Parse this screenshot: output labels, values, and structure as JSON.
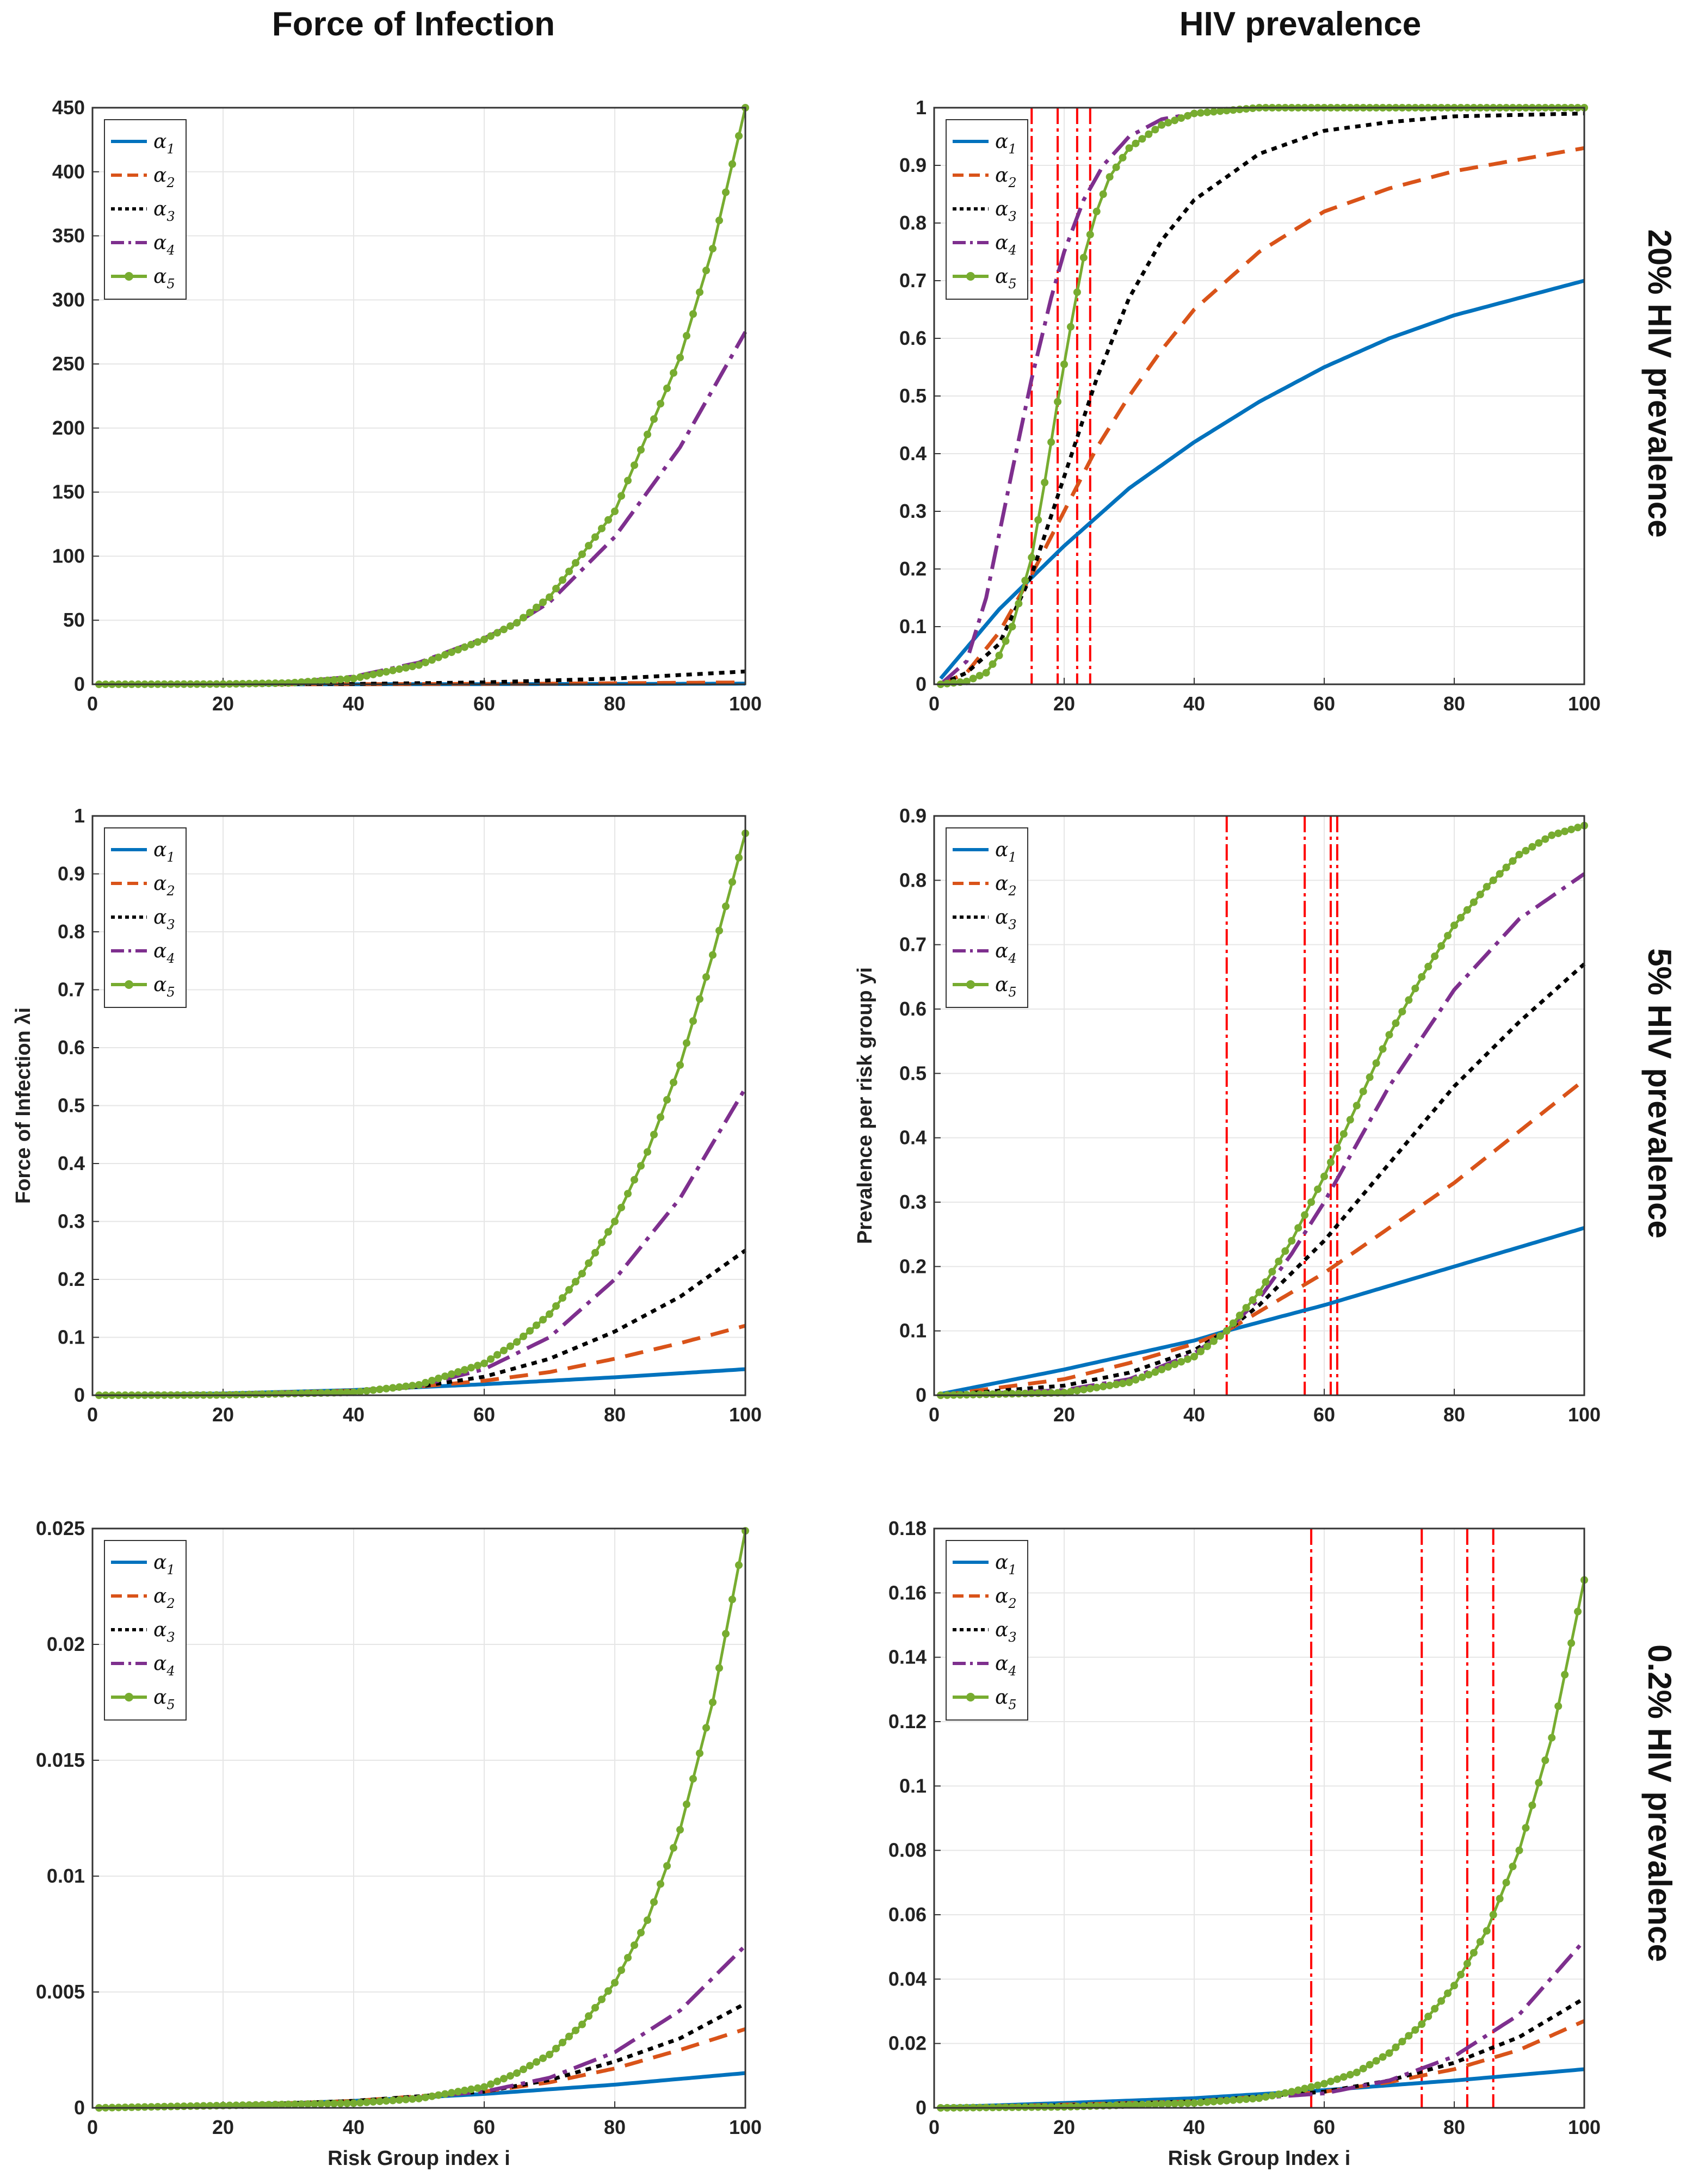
{
  "figure": {
    "column_titles": [
      "Force of Infection",
      "HIV prevalence"
    ],
    "row_titles": [
      "20% HIV prevalence",
      "5% HIV prevalence",
      "0.2% HIV prevalence"
    ],
    "series_names": [
      "α1",
      "α2",
      "α3",
      "α4",
      "α5"
    ],
    "legend": [
      {
        "symbol": "α",
        "sub": "1"
      },
      {
        "symbol": "α",
        "sub": "2"
      },
      {
        "symbol": "α",
        "sub": "3"
      },
      {
        "symbol": "α",
        "sub": "4"
      },
      {
        "symbol": "α",
        "sub": "5"
      }
    ],
    "series_colors": [
      "#0072BD",
      "#D95319",
      "#000000",
      "#7E2F8E",
      "#77AC30"
    ],
    "threshold_line_color": "#FF0000"
  },
  "chart_data": [
    {
      "id": "foi-20",
      "type": "line",
      "title": "",
      "xlabel": "",
      "ylabel": "",
      "xlim": [
        0,
        100
      ],
      "ylim": [
        0,
        450
      ],
      "xticks": [
        "0",
        "20",
        "40",
        "60",
        "80",
        "100"
      ],
      "yticks": [
        "0",
        "50",
        "100",
        "150",
        "200",
        "250",
        "300",
        "350",
        "400",
        "450"
      ],
      "vlines": [],
      "series": [
        {
          "name": "α1",
          "x": [
            1,
            30,
            50,
            70,
            100
          ],
          "y": [
            0,
            0,
            0.1,
            0.2,
            0.5
          ]
        },
        {
          "name": "α2",
          "x": [
            1,
            30,
            50,
            70,
            100
          ],
          "y": [
            0,
            0,
            0.2,
            0.5,
            1.5
          ]
        },
        {
          "name": "α3",
          "x": [
            1,
            40,
            60,
            80,
            100
          ],
          "y": [
            0,
            0.3,
            1.5,
            4.5,
            10
          ]
        },
        {
          "name": "α4",
          "x": [
            1,
            20,
            30,
            40,
            50,
            60,
            65,
            70,
            80,
            90,
            100
          ],
          "y": [
            0,
            0.3,
            1.5,
            6,
            17,
            36,
            48,
            64,
            115,
            185,
            275
          ]
        },
        {
          "name": "α5",
          "x": [
            1,
            20,
            30,
            40,
            50,
            60,
            65,
            70,
            80,
            90,
            95,
            100
          ],
          "y": [
            0,
            0.2,
            1,
            4.5,
            15,
            35,
            48,
            68,
            135,
            255,
            340,
            450
          ]
        }
      ]
    },
    {
      "id": "prev-20",
      "type": "line",
      "title": "",
      "xlabel": "",
      "ylabel": "",
      "xlim": [
        0,
        100
      ],
      "ylim": [
        0,
        1
      ],
      "xticks": [
        "0",
        "20",
        "40",
        "60",
        "80",
        "100"
      ],
      "yticks": [
        "0",
        "0.1",
        "0.2",
        "0.3",
        "0.4",
        "0.5",
        "0.6",
        "0.7",
        "0.8",
        "0.9",
        "1"
      ],
      "vlines": [
        15,
        19,
        22,
        24
      ],
      "series": [
        {
          "name": "α1",
          "x": [
            1,
            10,
            20,
            30,
            40,
            50,
            60,
            70,
            80,
            90,
            100
          ],
          "y": [
            0.01,
            0.13,
            0.24,
            0.34,
            0.42,
            0.49,
            0.55,
            0.6,
            0.64,
            0.67,
            0.7
          ]
        },
        {
          "name": "α2",
          "x": [
            1,
            5,
            10,
            15,
            20,
            25,
            30,
            35,
            40,
            50,
            60,
            70,
            80,
            90,
            100
          ],
          "y": [
            0,
            0.02,
            0.09,
            0.19,
            0.3,
            0.41,
            0.5,
            0.58,
            0.65,
            0.75,
            0.82,
            0.86,
            0.89,
            0.91,
            0.93
          ]
        },
        {
          "name": "α3",
          "x": [
            1,
            5,
            10,
            15,
            20,
            25,
            30,
            35,
            40,
            50,
            60,
            70,
            80,
            100
          ],
          "y": [
            0,
            0.02,
            0.07,
            0.19,
            0.36,
            0.53,
            0.67,
            0.77,
            0.84,
            0.92,
            0.96,
            0.975,
            0.985,
            0.99
          ]
        },
        {
          "name": "α4",
          "x": [
            1,
            5,
            8,
            10,
            12,
            15,
            18,
            20,
            23,
            26,
            30,
            35,
            40,
            50,
            100
          ],
          "y": [
            0,
            0.04,
            0.15,
            0.26,
            0.37,
            0.53,
            0.67,
            0.75,
            0.84,
            0.9,
            0.95,
            0.98,
            0.99,
            1,
            1
          ]
        },
        {
          "name": "α5",
          "x": [
            1,
            5,
            8,
            10,
            12,
            15,
            17,
            19,
            21,
            23,
            25,
            27,
            30,
            35,
            40,
            50,
            100
          ],
          "y": [
            0,
            0.005,
            0.02,
            0.05,
            0.1,
            0.22,
            0.35,
            0.49,
            0.62,
            0.74,
            0.82,
            0.88,
            0.93,
            0.97,
            0.99,
            1,
            1
          ]
        }
      ]
    },
    {
      "id": "foi-5",
      "type": "line",
      "title": "",
      "xlabel": "",
      "ylabel": "Force of Infection λi",
      "xlim": [
        0,
        100
      ],
      "ylim": [
        0,
        1
      ],
      "xticks": [
        "0",
        "20",
        "40",
        "60",
        "80",
        "100"
      ],
      "yticks": [
        "0",
        "0.1",
        "0.2",
        "0.3",
        "0.4",
        "0.5",
        "0.6",
        "0.7",
        "0.8",
        "0.9",
        "1"
      ],
      "vlines": [],
      "series": [
        {
          "name": "α1",
          "x": [
            1,
            20,
            40,
            50,
            60,
            70,
            80,
            90,
            100
          ],
          "y": [
            0,
            0.003,
            0.009,
            0.014,
            0.019,
            0.025,
            0.031,
            0.038,
            0.045
          ]
        },
        {
          "name": "α2",
          "x": [
            1,
            20,
            40,
            50,
            60,
            70,
            80,
            90,
            100
          ],
          "y": [
            0,
            0.002,
            0.008,
            0.015,
            0.025,
            0.04,
            0.063,
            0.09,
            0.12
          ]
        },
        {
          "name": "α3",
          "x": [
            1,
            20,
            40,
            50,
            60,
            70,
            80,
            90,
            100
          ],
          "y": [
            0,
            0.001,
            0.007,
            0.015,
            0.032,
            0.063,
            0.11,
            0.17,
            0.25
          ]
        },
        {
          "name": "α4",
          "x": [
            1,
            20,
            40,
            50,
            60,
            70,
            80,
            90,
            100
          ],
          "y": [
            0,
            0.001,
            0.006,
            0.016,
            0.045,
            0.1,
            0.2,
            0.34,
            0.53
          ]
        },
        {
          "name": "α5",
          "x": [
            1,
            20,
            40,
            50,
            60,
            65,
            70,
            75,
            80,
            85,
            90,
            95,
            100
          ],
          "y": [
            0,
            0.0005,
            0.005,
            0.018,
            0.055,
            0.092,
            0.14,
            0.21,
            0.3,
            0.42,
            0.57,
            0.76,
            0.97
          ]
        }
      ]
    },
    {
      "id": "prev-5",
      "type": "line",
      "title": "",
      "xlabel": "",
      "ylabel": "Prevalence per risk group yi",
      "xlim": [
        0,
        100
      ],
      "ylim": [
        0,
        0.9
      ],
      "xticks": [
        "0",
        "20",
        "40",
        "60",
        "80",
        "100"
      ],
      "yticks": [
        "0",
        "0.1",
        "0.2",
        "0.3",
        "0.4",
        "0.5",
        "0.6",
        "0.7",
        "0.8",
        "0.9"
      ],
      "vlines": [
        45,
        57,
        61,
        62
      ],
      "series": [
        {
          "name": "α1",
          "x": [
            1,
            20,
            40,
            45,
            60,
            80,
            100
          ],
          "y": [
            0.002,
            0.04,
            0.085,
            0.1,
            0.14,
            0.2,
            0.26
          ]
        },
        {
          "name": "α2",
          "x": [
            1,
            20,
            30,
            40,
            45,
            50,
            60,
            70,
            80,
            90,
            100
          ],
          "y": [
            0,
            0.025,
            0.05,
            0.08,
            0.1,
            0.13,
            0.19,
            0.26,
            0.33,
            0.41,
            0.49
          ]
        },
        {
          "name": "α3",
          "x": [
            1,
            20,
            30,
            40,
            45,
            50,
            60,
            70,
            80,
            90,
            100
          ],
          "y": [
            0,
            0.015,
            0.035,
            0.07,
            0.1,
            0.14,
            0.24,
            0.36,
            0.48,
            0.58,
            0.67
          ]
        },
        {
          "name": "α4",
          "x": [
            1,
            20,
            30,
            40,
            45,
            50,
            55,
            60,
            65,
            70,
            80,
            90,
            100
          ],
          "y": [
            0,
            0.008,
            0.025,
            0.065,
            0.1,
            0.15,
            0.22,
            0.3,
            0.39,
            0.48,
            0.63,
            0.74,
            0.81
          ]
        },
        {
          "name": "α5",
          "x": [
            1,
            20,
            30,
            40,
            45,
            50,
            55,
            60,
            65,
            70,
            75,
            80,
            85,
            90,
            95,
            100
          ],
          "y": [
            0,
            0.004,
            0.02,
            0.06,
            0.1,
            0.16,
            0.24,
            0.34,
            0.45,
            0.56,
            0.65,
            0.73,
            0.79,
            0.84,
            0.87,
            0.885
          ]
        }
      ]
    },
    {
      "id": "foi-02",
      "type": "line",
      "title": "",
      "xlabel": "Risk Group index i",
      "ylabel": "",
      "xlim": [
        0,
        100
      ],
      "ylim": [
        0,
        0.025
      ],
      "xticks": [
        "0",
        "20",
        "40",
        "60",
        "80",
        "100"
      ],
      "yticks": [
        "0",
        "0.005",
        "0.01",
        "0.015",
        "0.02",
        "0.025"
      ],
      "vlines": [],
      "series": [
        {
          "name": "α1",
          "x": [
            1,
            20,
            40,
            60,
            80,
            100
          ],
          "y": [
            0,
            0.0001,
            0.0003,
            0.0006,
            0.001,
            0.0015
          ]
        },
        {
          "name": "α2",
          "x": [
            1,
            20,
            40,
            60,
            70,
            80,
            90,
            100
          ],
          "y": [
            0,
            0.0001,
            0.0003,
            0.0007,
            0.0011,
            0.0017,
            0.0025,
            0.0034
          ]
        },
        {
          "name": "α3",
          "x": [
            1,
            20,
            40,
            60,
            70,
            80,
            90,
            100
          ],
          "y": [
            0,
            0.0001,
            0.0003,
            0.0007,
            0.0012,
            0.002,
            0.003,
            0.0045
          ]
        },
        {
          "name": "α4",
          "x": [
            1,
            20,
            40,
            60,
            70,
            80,
            90,
            100
          ],
          "y": [
            0,
            0.0001,
            0.0002,
            0.0007,
            0.0013,
            0.0024,
            0.0042,
            0.007
          ]
        },
        {
          "name": "α5",
          "x": [
            1,
            20,
            40,
            50,
            60,
            65,
            70,
            75,
            80,
            85,
            90,
            95,
            100
          ],
          "y": [
            0,
            0.0001,
            0.0002,
            0.0004,
            0.0009,
            0.0015,
            0.0023,
            0.0036,
            0.0054,
            0.0081,
            0.012,
            0.0175,
            0.0249
          ]
        }
      ]
    },
    {
      "id": "prev-02",
      "type": "line",
      "title": "",
      "xlabel": "Risk Group Index i",
      "ylabel": "",
      "xlim": [
        0,
        100
      ],
      "ylim": [
        0,
        0.18
      ],
      "xticks": [
        "0",
        "20",
        "40",
        "60",
        "80",
        "100"
      ],
      "yticks": [
        "0",
        "0.02",
        "0.04",
        "0.06",
        "0.08",
        "0.1",
        "0.12",
        "0.14",
        "0.16",
        "0.18"
      ],
      "vlines": [
        58,
        75,
        82,
        86
      ],
      "series": [
        {
          "name": "α1",
          "x": [
            1,
            20,
            40,
            60,
            80,
            100
          ],
          "y": [
            0.0002,
            0.0015,
            0.003,
            0.0055,
            0.0085,
            0.012
          ]
        },
        {
          "name": "α2",
          "x": [
            1,
            20,
            40,
            60,
            70,
            80,
            90,
            100
          ],
          "y": [
            0,
            0.001,
            0.002,
            0.005,
            0.008,
            0.012,
            0.018,
            0.027
          ]
        },
        {
          "name": "α3",
          "x": [
            1,
            20,
            40,
            60,
            70,
            80,
            90,
            100
          ],
          "y": [
            0,
            0.0008,
            0.002,
            0.005,
            0.0085,
            0.014,
            0.022,
            0.034
          ]
        },
        {
          "name": "α4",
          "x": [
            1,
            20,
            40,
            60,
            70,
            80,
            90,
            100
          ],
          "y": [
            0,
            0.0006,
            0.0017,
            0.0045,
            0.0085,
            0.016,
            0.029,
            0.052
          ]
        },
        {
          "name": "α5",
          "x": [
            1,
            20,
            40,
            50,
            55,
            60,
            65,
            70,
            75,
            80,
            85,
            90,
            95,
            100
          ],
          "y": [
            0,
            0.0003,
            0.0015,
            0.003,
            0.005,
            0.0075,
            0.011,
            0.017,
            0.026,
            0.038,
            0.055,
            0.08,
            0.115,
            0.164
          ]
        }
      ]
    }
  ]
}
